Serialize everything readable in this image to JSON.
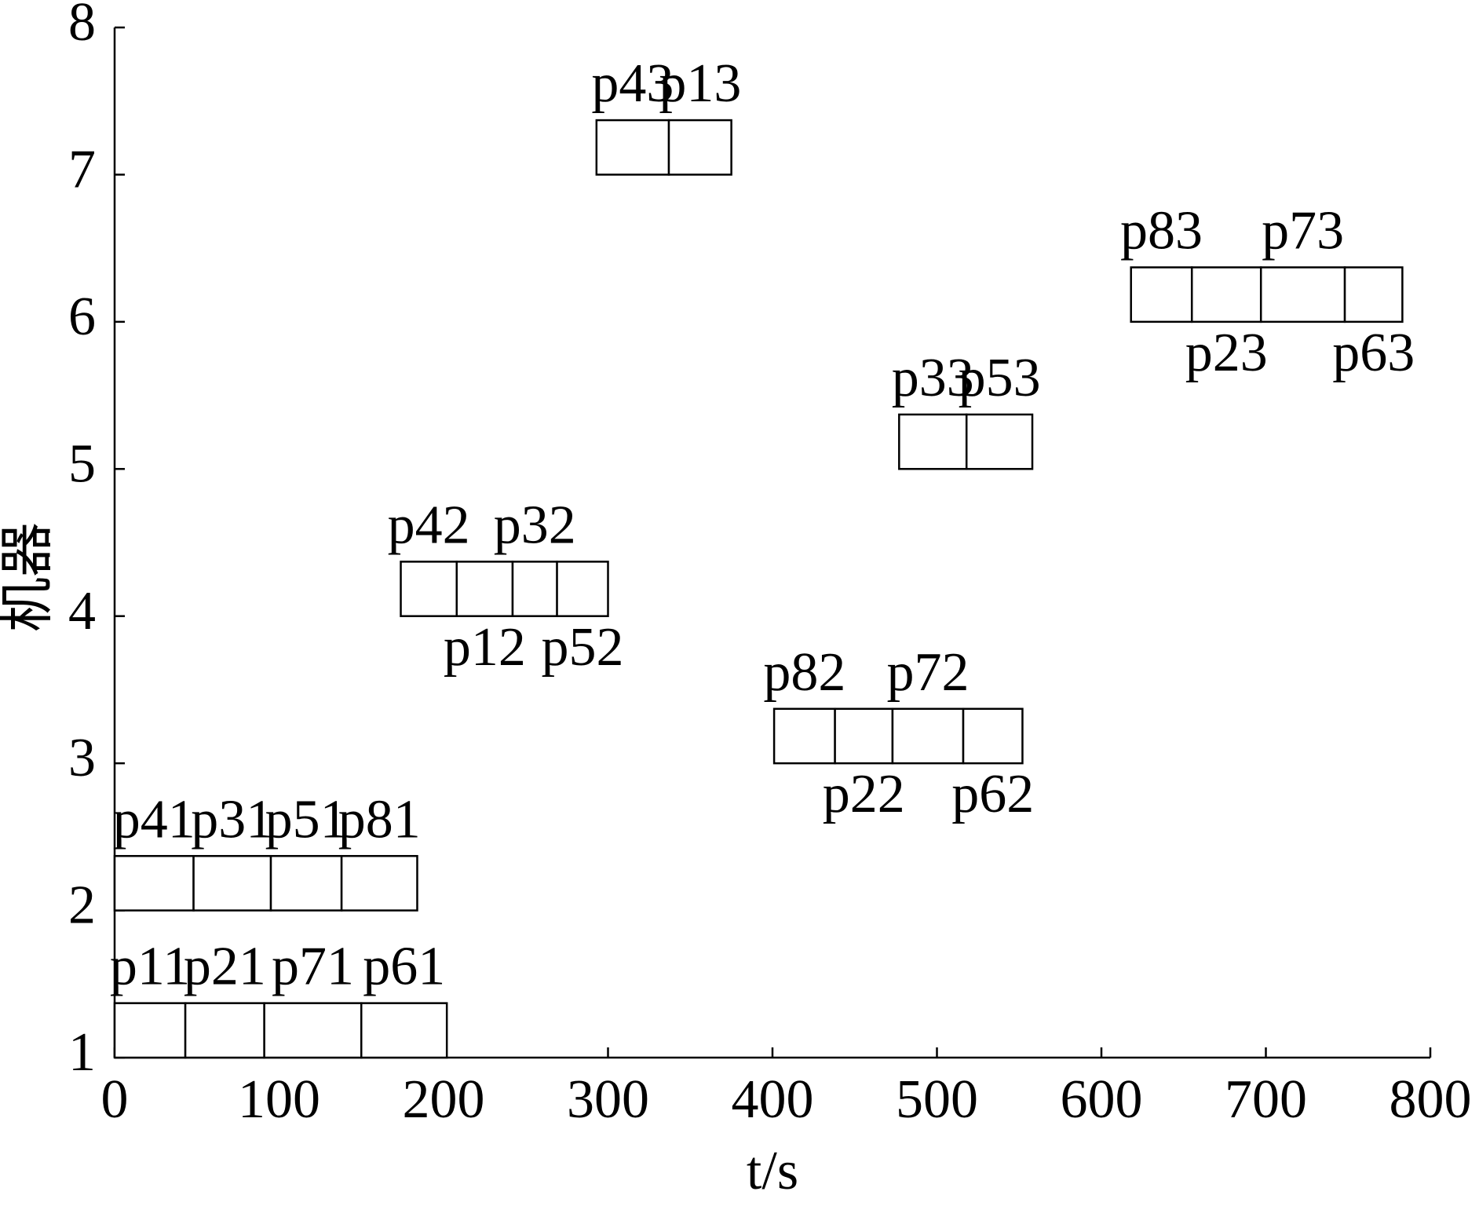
{
  "chart_data": {
    "type": "gantt",
    "xlabel": "t/s",
    "ylabel": "机器",
    "xlim": [
      0,
      800
    ],
    "ylim": [
      1,
      8
    ],
    "xticks": [
      0,
      100,
      200,
      300,
      400,
      500,
      600,
      700,
      800
    ],
    "yticks": [
      1,
      2,
      3,
      4,
      5,
      6,
      7,
      8
    ],
    "bar_color": "#ffffff",
    "edge_color": "#000000",
    "tasks": [
      {
        "name": "p11",
        "machine": 1,
        "start": 0,
        "end": 43,
        "label_position": "above"
      },
      {
        "name": "p21",
        "machine": 1,
        "start": 43,
        "end": 91,
        "label_position": "above"
      },
      {
        "name": "p71",
        "machine": 1,
        "start": 91,
        "end": 150,
        "label_position": "above"
      },
      {
        "name": "p61",
        "machine": 1,
        "start": 150,
        "end": 202,
        "label_position": "above"
      },
      {
        "name": "p41",
        "machine": 2,
        "start": 0,
        "end": 48,
        "label_position": "above"
      },
      {
        "name": "p31",
        "machine": 2,
        "start": 48,
        "end": 95,
        "label_position": "above"
      },
      {
        "name": "p51",
        "machine": 2,
        "start": 95,
        "end": 138,
        "label_position": "above"
      },
      {
        "name": "p81",
        "machine": 2,
        "start": 138,
        "end": 184,
        "label_position": "above"
      },
      {
        "name": "p82",
        "machine": 3,
        "start": 401,
        "end": 438,
        "label_position": "above"
      },
      {
        "name": "p22",
        "machine": 3,
        "start": 438,
        "end": 473,
        "label_position": "below"
      },
      {
        "name": "p72",
        "machine": 3,
        "start": 473,
        "end": 516,
        "label_position": "above"
      },
      {
        "name": "p62",
        "machine": 3,
        "start": 516,
        "end": 552,
        "label_position": "below"
      },
      {
        "name": "p42",
        "machine": 4,
        "start": 174,
        "end": 208,
        "label_position": "above"
      },
      {
        "name": "p12",
        "machine": 4,
        "start": 208,
        "end": 242,
        "label_position": "below"
      },
      {
        "name": "p32",
        "machine": 4,
        "start": 242,
        "end": 269,
        "label_position": "above"
      },
      {
        "name": "p52",
        "machine": 4,
        "start": 269,
        "end": 300,
        "label_position": "below"
      },
      {
        "name": "p33",
        "machine": 5,
        "start": 477,
        "end": 518,
        "label_position": "above"
      },
      {
        "name": "p53",
        "machine": 5,
        "start": 518,
        "end": 558,
        "label_position": "above"
      },
      {
        "name": "p83",
        "machine": 6,
        "start": 618,
        "end": 655,
        "label_position": "above"
      },
      {
        "name": "p23",
        "machine": 6,
        "start": 655,
        "end": 697,
        "label_position": "below"
      },
      {
        "name": "p73",
        "machine": 6,
        "start": 697,
        "end": 748,
        "label_position": "above"
      },
      {
        "name": "p63",
        "machine": 6,
        "start": 748,
        "end": 783,
        "label_position": "below"
      },
      {
        "name": "p43",
        "machine": 7,
        "start": 293,
        "end": 337,
        "label_position": "above"
      },
      {
        "name": "p13",
        "machine": 7,
        "start": 337,
        "end": 375,
        "label_position": "above"
      }
    ]
  }
}
